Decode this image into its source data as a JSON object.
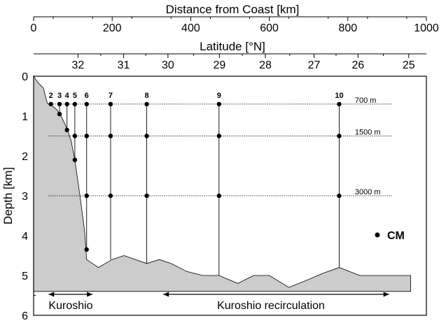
{
  "top_axis": {
    "title": "Distance from Coast [km]",
    "ticks": [
      "0",
      "200",
      "400",
      "600",
      "800",
      "1000"
    ],
    "tick_values": [
      0,
      200,
      400,
      600,
      800,
      1000
    ]
  },
  "lat_axis": {
    "title": "Latitude [°N]",
    "ticks": [
      "32",
      "31",
      "30",
      "29",
      "28",
      "27",
      "26",
      "25"
    ],
    "tick_values": [
      32,
      31,
      30,
      29,
      28,
      27,
      26,
      25
    ],
    "km_positions": [
      113,
      229,
      342,
      473,
      590,
      714,
      826,
      955
    ]
  },
  "y_axis": {
    "title": "Depth [km]",
    "ticks": [
      "0",
      "1",
      "2",
      "3",
      "4",
      "5",
      "6"
    ],
    "tick_values": [
      0,
      1,
      2,
      3,
      4,
      5,
      6
    ]
  },
  "depth_levels": [
    {
      "depth_km": 0.7,
      "label": "700 m"
    },
    {
      "depth_km": 1.5,
      "label": "1500 m"
    },
    {
      "depth_km": 3.0,
      "label": "3000 m"
    }
  ],
  "stations": [
    {
      "label": "2",
      "km": 44,
      "bottom_km": 0.7,
      "instruments_km": [
        0.7
      ]
    },
    {
      "label": "3",
      "km": 66,
      "bottom_km": 0.95,
      "instruments_km": [
        0.7,
        0.95
      ]
    },
    {
      "label": "4",
      "km": 85,
      "bottom_km": 1.35,
      "instruments_km": [
        0.7,
        1.35
      ]
    },
    {
      "label": "5",
      "km": 105,
      "bottom_km": 2.1,
      "instruments_km": [
        0.7,
        1.5,
        2.1
      ]
    },
    {
      "label": "6",
      "km": 135,
      "bottom_km": 4.35,
      "instruments_km": [
        0.7,
        1.5,
        3.0,
        4.35
      ]
    },
    {
      "label": "7",
      "km": 196,
      "bottom_km": 4.6,
      "instruments_km": [
        0.7,
        1.5,
        3.0
      ]
    },
    {
      "label": "8",
      "km": 288,
      "bottom_km": 4.7,
      "instruments_km": [
        0.7,
        1.5,
        3.0
      ]
    },
    {
      "label": "9",
      "km": 472,
      "bottom_km": 5.0,
      "instruments_km": [
        0.7,
        1.5,
        3.0
      ]
    },
    {
      "label": "10",
      "km": 778,
      "bottom_km": 4.8,
      "instruments_km": [
        0.7,
        1.5,
        3.0
      ]
    }
  ],
  "bathymetry": [
    [
      0,
      0.0
    ],
    [
      10,
      0.15
    ],
    [
      25,
      0.3
    ],
    [
      35,
      0.68
    ],
    [
      48,
      0.75
    ],
    [
      60,
      0.85
    ],
    [
      70,
      1.0
    ],
    [
      82,
      1.25
    ],
    [
      95,
      1.6
    ],
    [
      105,
      2.1
    ],
    [
      118,
      3.0
    ],
    [
      130,
      3.9
    ],
    [
      135,
      4.6
    ],
    [
      165,
      4.8
    ],
    [
      200,
      4.6
    ],
    [
      230,
      4.5
    ],
    [
      288,
      4.7
    ],
    [
      320,
      4.6
    ],
    [
      350,
      4.7
    ],
    [
      390,
      4.9
    ],
    [
      430,
      5.0
    ],
    [
      472,
      5.0
    ],
    [
      520,
      5.2
    ],
    [
      560,
      5.0
    ],
    [
      600,
      5.0
    ],
    [
      650,
      5.3
    ],
    [
      700,
      5.1
    ],
    [
      735,
      4.95
    ],
    [
      778,
      4.8
    ],
    [
      830,
      5.0
    ],
    [
      960,
      5.0
    ],
    [
      960,
      5.4
    ],
    [
      0,
      5.4
    ]
  ],
  "legend": {
    "label": "CM"
  },
  "annotations": {
    "left_label": "Kuroshio",
    "left_range_km": [
      38,
      150
    ],
    "right_label": "Kuroshio recirculation",
    "right_range_km": [
      330,
      905
    ]
  },
  "colors": {
    "seafloor": "#cccccc",
    "ink": "#000000"
  }
}
